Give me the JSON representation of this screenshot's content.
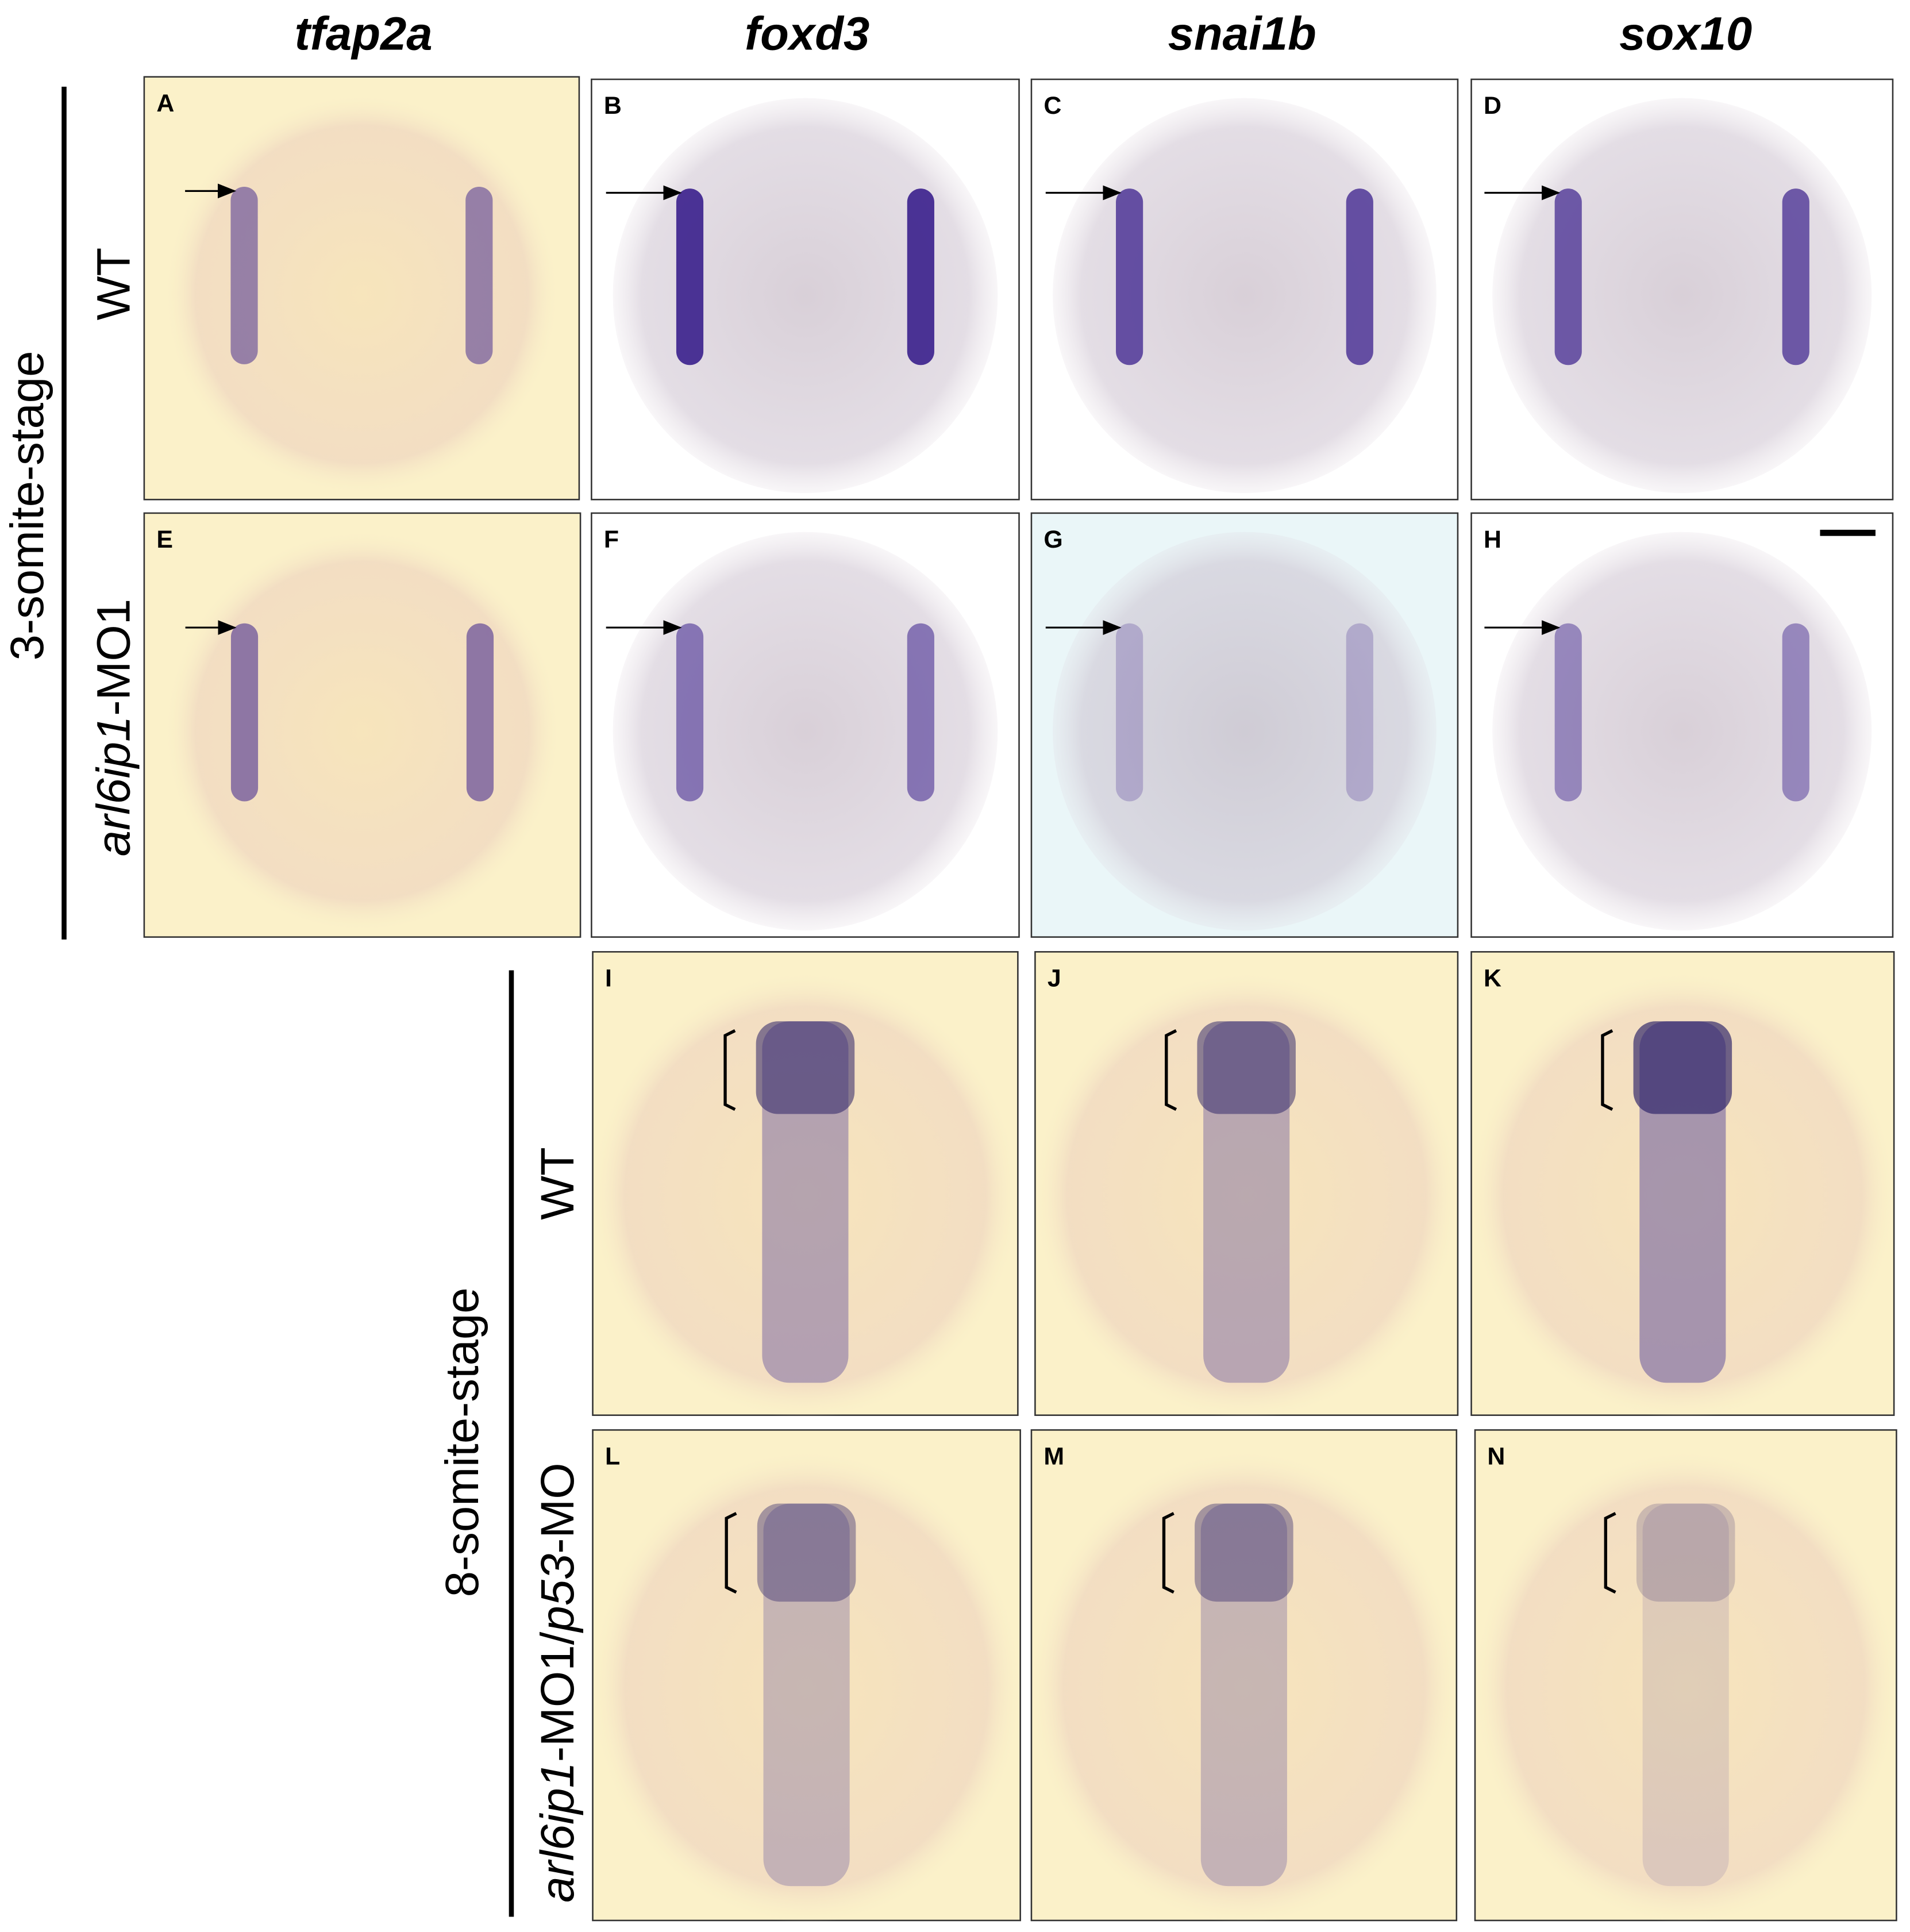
{
  "column_headers": [
    "tfap2a",
    "foxd3",
    "snai1b",
    "sox10"
  ],
  "stages": [
    {
      "label": "3-somite-stage",
      "rows": [
        {
          "label": [
            {
              "text": "WT",
              "italic": false
            }
          ]
        },
        {
          "label": [
            {
              "text": "arl6ip1",
              "italic": true
            },
            {
              "text": "-MO1",
              "italic": false
            }
          ]
        }
      ]
    },
    {
      "label": "8-somite-stage",
      "rows": [
        {
          "label": [
            {
              "text": "WT",
              "italic": false
            }
          ]
        },
        {
          "label": [
            {
              "text": "arl6ip1",
              "italic": true
            },
            {
              "text": "-MO1/",
              "italic": false
            },
            {
              "text": "p53",
              "italic": true
            },
            {
              "text": "-MO",
              "italic": false
            }
          ]
        }
      ]
    }
  ],
  "panels": [
    "A",
    "B",
    "C",
    "D",
    "E",
    "F",
    "G",
    "H",
    "I",
    "J",
    "K",
    "L",
    "M",
    "N"
  ]
}
